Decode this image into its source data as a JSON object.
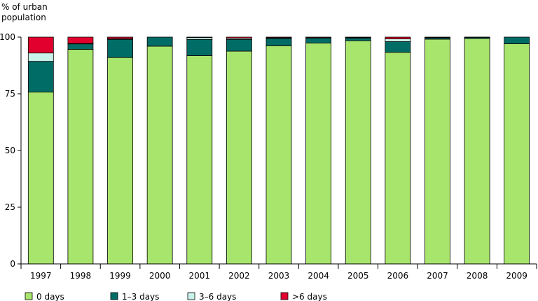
{
  "chart_data": {
    "type": "bar",
    "stacked": true,
    "ylabel": "% of urban population",
    "ylim": [
      0,
      100
    ],
    "yticks": [
      0,
      25,
      50,
      75,
      100
    ],
    "grid": false,
    "legend_position": "bottom",
    "categories": [
      "1997",
      "1998",
      "1999",
      "2000",
      "2001",
      "2002",
      "2003",
      "2004",
      "2005",
      "2006",
      "2007",
      "2008",
      "2009"
    ],
    "series": [
      {
        "name": "0 days",
        "color": "#a8e56c",
        "values": [
          75.8,
          94.6,
          91,
          96,
          91.8,
          93.8,
          96.2,
          97.4,
          98.4,
          93.3,
          99.1,
          99.4,
          97.1
        ]
      },
      {
        "name": "1–3 days",
        "color": "#006c66",
        "values": [
          13.5,
          2.4,
          8,
          4,
          7.2,
          5.2,
          3.2,
          2.2,
          1.2,
          4.7,
          0.6,
          0.5,
          2.9
        ]
      },
      {
        "name": "3–6 days",
        "color": "#c8f2ea",
        "values": [
          3.7,
          0.2,
          0.3,
          0,
          0.8,
          0.5,
          0.3,
          0.1,
          0.2,
          1.2,
          0.1,
          0.05,
          0
        ]
      },
      {
        "name": ">6 days",
        "color": "#e2002f",
        "values": [
          7,
          2.8,
          0.7,
          0,
          0.2,
          0.5,
          0.3,
          0.3,
          0.2,
          0.8,
          0.2,
          0.05,
          0
        ]
      }
    ]
  }
}
